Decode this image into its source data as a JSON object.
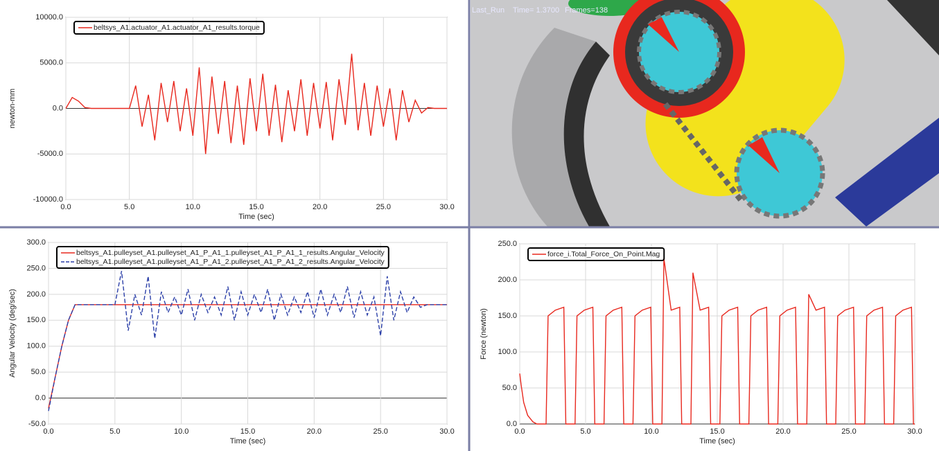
{
  "viewport": {
    "caption": [
      "Last_Run",
      "Time= 1.3700",
      "Frames=138"
    ]
  },
  "chart_data": [
    {
      "type": "line",
      "x_label": "Time (sec)",
      "y_label": "newton-mm",
      "legend": "upper left",
      "grid": true,
      "xlim": [
        0,
        30
      ],
      "ylim": [
        -10000,
        10000
      ],
      "xticks": [
        {
          "value": 0,
          "label": "0.0"
        },
        {
          "value": 5,
          "label": "5.0"
        },
        {
          "value": 10,
          "label": "10.0"
        },
        {
          "value": 15,
          "label": "15.0"
        },
        {
          "value": 20,
          "label": "20.0"
        },
        {
          "value": 25,
          "label": "25.0"
        },
        {
          "value": 30,
          "label": "30.0"
        }
      ],
      "yticks": [
        {
          "value": -10000,
          "label": "-10000.0"
        },
        {
          "value": -5000,
          "label": "-5000.0"
        },
        {
          "value": 0,
          "label": "0.0"
        },
        {
          "value": 5000,
          "label": "5000.0"
        },
        {
          "value": 10000,
          "label": "10000.0"
        }
      ],
      "x": [
        0,
        0.5,
        1,
        1.5,
        2,
        2.5,
        3,
        3.5,
        4,
        4.5,
        5,
        5.5,
        6,
        6.5,
        7,
        7.5,
        8,
        8.5,
        9,
        9.5,
        10,
        10.5,
        11,
        11.5,
        12,
        12.5,
        13,
        13.5,
        14,
        14.5,
        15,
        15.5,
        16,
        16.5,
        17,
        17.5,
        18,
        18.5,
        19,
        19.5,
        20,
        20.5,
        21,
        21.5,
        22,
        22.5,
        23,
        23.5,
        24,
        24.5,
        25,
        25.5,
        26,
        26.5,
        27,
        27.5,
        28,
        28.5,
        29,
        29.5,
        30
      ],
      "series": [
        {
          "name": "beltsys_A1.actuator_A1.actuator_A1_results.torque",
          "color": "#e8281e",
          "linestyle": "solid",
          "values": [
            0,
            1200,
            800,
            100,
            0,
            0,
            0,
            0,
            0,
            0,
            0,
            2500,
            -2000,
            1500,
            -3500,
            2800,
            -1500,
            3000,
            -2500,
            2200,
            -3000,
            4500,
            -5000,
            3500,
            -2800,
            3000,
            -3800,
            2500,
            -4000,
            3300,
            -2500,
            3800,
            -3000,
            2600,
            -3700,
            2000,
            -2500,
            3200,
            -3000,
            2800,
            -2200,
            2900,
            -3500,
            3200,
            -1800,
            6000,
            -2400,
            2800,
            -3000,
            2500,
            -2000,
            2200,
            -3500,
            2000,
            -1500,
            900,
            -500,
            100,
            0,
            0,
            0
          ]
        }
      ]
    },
    {
      "type": "line",
      "x_label": "Time (sec)",
      "y_label": "Angular Velocity (deg/sec)",
      "legend": "upper left",
      "grid": true,
      "xlim": [
        0,
        30
      ],
      "ylim": [
        -50,
        300
      ],
      "xticks": [
        {
          "value": 0,
          "label": "0.0"
        },
        {
          "value": 5,
          "label": "5.0"
        },
        {
          "value": 10,
          "label": "10.0"
        },
        {
          "value": 15,
          "label": "15.0"
        },
        {
          "value": 20,
          "label": "20.0"
        },
        {
          "value": 25,
          "label": "25.0"
        },
        {
          "value": 30,
          "label": "30.0"
        }
      ],
      "yticks": [
        {
          "value": -50,
          "label": "-50.0"
        },
        {
          "value": 0,
          "label": "0.0"
        },
        {
          "value": 50,
          "label": "50.0"
        },
        {
          "value": 100,
          "label": "100.0"
        },
        {
          "value": 150,
          "label": "150.0"
        },
        {
          "value": 200,
          "label": "200.0"
        },
        {
          "value": 250,
          "label": "250.0"
        },
        {
          "value": 300,
          "label": "300.0"
        }
      ],
      "x": [
        0,
        0.5,
        1,
        1.5,
        2,
        2.5,
        3,
        3.5,
        4,
        4.5,
        5,
        5.5,
        6,
        6.5,
        7,
        7.5,
        8,
        8.5,
        9,
        9.5,
        10,
        10.5,
        11,
        11.5,
        12,
        12.5,
        13,
        13.5,
        14,
        14.5,
        15,
        15.5,
        16,
        16.5,
        17,
        17.5,
        18,
        18.5,
        19,
        19.5,
        20,
        20.5,
        21,
        21.5,
        22,
        22.5,
        23,
        23.5,
        24,
        24.5,
        25,
        25.5,
        26,
        26.5,
        27,
        27.5,
        28,
        28.5,
        29,
        29.5,
        30
      ],
      "series": [
        {
          "name": "beltsys_A1.pulleyset_A1.pulleyset_A1_P_A1_1.pulleyset_A1_P_A1_1_results.Angular_Velocity",
          "color": "#e8281e",
          "linestyle": "solid",
          "values": [
            -20,
            40,
            100,
            150,
            180,
            180,
            180,
            180,
            180,
            180,
            180,
            180,
            180,
            180,
            180,
            180,
            180,
            180,
            180,
            180,
            180,
            180,
            180,
            180,
            180,
            180,
            180,
            180,
            180,
            180,
            180,
            180,
            180,
            180,
            180,
            180,
            180,
            180,
            180,
            180,
            180,
            180,
            180,
            180,
            180,
            180,
            180,
            180,
            180,
            180,
            180,
            180,
            180,
            180,
            180,
            180,
            180,
            180,
            180,
            180,
            180
          ]
        },
        {
          "name": "beltsys_A1.pulleyset_A1.pulleyset_A1_P_A1_2.pulleyset_A1_P_A1_2_results.Angular_Velocity",
          "color": "#2b3fa8",
          "linestyle": "dashed",
          "values": [
            -25,
            40,
            100,
            150,
            180,
            180,
            180,
            180,
            180,
            180,
            180,
            245,
            130,
            200,
            160,
            235,
            115,
            205,
            165,
            195,
            160,
            210,
            150,
            200,
            165,
            195,
            160,
            215,
            150,
            205,
            160,
            200,
            165,
            210,
            150,
            200,
            160,
            195,
            165,
            205,
            155,
            210,
            160,
            200,
            165,
            215,
            155,
            205,
            160,
            195,
            120,
            235,
            150,
            205,
            165,
            195,
            175,
            180,
            180,
            180,
            180
          ]
        }
      ]
    },
    {
      "type": "line",
      "x_label": "Time (sec)",
      "y_label": "Force (newton)",
      "legend": "upper left",
      "grid": true,
      "xlim": [
        0,
        30
      ],
      "ylim": [
        0,
        250
      ],
      "xticks": [
        {
          "value": 0,
          "label": "0.0"
        },
        {
          "value": 5,
          "label": "5.0"
        },
        {
          "value": 10,
          "label": "10.0"
        },
        {
          "value": 15,
          "label": "15.0"
        },
        {
          "value": 20,
          "label": "20.0"
        },
        {
          "value": 25,
          "label": "25.0"
        },
        {
          "value": 30,
          "label": "30.0"
        }
      ],
      "yticks": [
        {
          "value": 0,
          "label": "0.0"
        },
        {
          "value": 50,
          "label": "50.0"
        },
        {
          "value": 100,
          "label": "100.0"
        },
        {
          "value": 150,
          "label": "150.0"
        },
        {
          "value": 200,
          "label": "200.0"
        },
        {
          "value": 250,
          "label": "250.0"
        }
      ],
      "x": [
        0,
        0.1,
        0.3,
        0.6,
        1.0,
        1.3,
        2.0,
        2.15,
        2.7,
        3.35,
        3.5,
        4.2,
        4.35,
        4.9,
        5.55,
        5.7,
        6.4,
        6.55,
        7.1,
        7.75,
        7.9,
        8.6,
        8.75,
        9.3,
        9.95,
        10.1,
        10.8,
        10.95,
        11.5,
        12.15,
        12.3,
        13.0,
        13.15,
        13.7,
        14.35,
        14.5,
        15.2,
        15.35,
        15.9,
        16.55,
        16.7,
        17.4,
        17.55,
        18.1,
        18.75,
        18.9,
        19.6,
        19.75,
        20.3,
        20.95,
        21.1,
        21.8,
        21.95,
        22.5,
        23.15,
        23.3,
        24.0,
        24.15,
        24.7,
        25.35,
        25.5,
        26.2,
        26.35,
        26.9,
        27.55,
        27.7,
        28.4,
        28.55,
        29.1,
        29.75,
        29.9,
        30.0
      ],
      "series": [
        {
          "name": "force_i.Total_Force_On_Point.Mag",
          "color": "#e8281e",
          "linestyle": "solid",
          "values": [
            70,
            55,
            30,
            12,
            3,
            0,
            0,
            150,
            158,
            162,
            0,
            0,
            150,
            158,
            162,
            0,
            0,
            150,
            158,
            162,
            0,
            0,
            150,
            158,
            162,
            0,
            0,
            230,
            158,
            162,
            0,
            0,
            210,
            158,
            162,
            0,
            0,
            150,
            158,
            162,
            0,
            0,
            150,
            158,
            162,
            0,
            0,
            150,
            158,
            162,
            0,
            0,
            180,
            158,
            162,
            0,
            0,
            150,
            158,
            162,
            0,
            0,
            150,
            158,
            162,
            0,
            0,
            150,
            158,
            162,
            0,
            0
          ]
        }
      ]
    }
  ]
}
